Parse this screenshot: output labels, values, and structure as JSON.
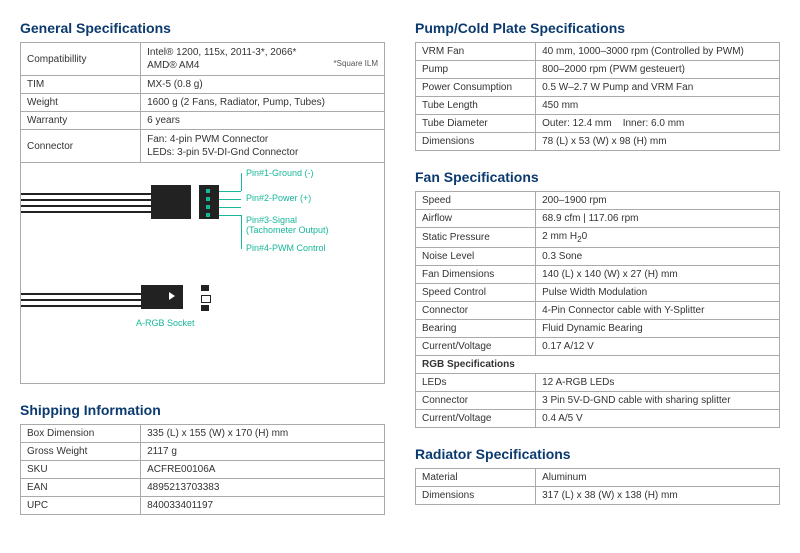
{
  "general": {
    "title": "General Specifications",
    "rows": [
      {
        "k": "Compatibillity",
        "v": "Intel® 1200, 115x, 2011-3*, 2066*<br>AMD® AM4",
        "note": "*Square ILM"
      },
      {
        "k": "TIM",
        "v": "MX-5 (0.8 g)"
      },
      {
        "k": "Weight",
        "v": "1600 g (2 Fans, Radiator, Pump, Tubes)"
      },
      {
        "k": "Warranty",
        "v": "6 years"
      },
      {
        "k": "Connector",
        "v": "Fan: 4-pin PWM Connector<br>LEDs: 3-pin 5V-DI-Gnd Connector"
      }
    ]
  },
  "diagram": {
    "pins": [
      {
        "label": "Pin#1-Ground (-)"
      },
      {
        "label": "Pin#2-Power (+)"
      },
      {
        "label": "Pin#3-Signal",
        "sub": "(Tachometer Output)"
      },
      {
        "label": "Pin#4-PWM Control"
      }
    ],
    "argb": "A-RGB Socket"
  },
  "shipping": {
    "title": "Shipping Information",
    "rows": [
      {
        "k": "Box Dimension",
        "v": "335 (L) x 155 (W) x 170 (H) mm"
      },
      {
        "k": "Gross Weight",
        "v": "2117 g"
      },
      {
        "k": "SKU",
        "v": "ACFRE00106A"
      },
      {
        "k": "EAN",
        "v": "4895213703383"
      },
      {
        "k": "UPC",
        "v": "840033401197"
      }
    ]
  },
  "pump": {
    "title": "Pump/Cold Plate Specifications",
    "rows": [
      {
        "k": "VRM Fan",
        "v": "40 mm, 1000–3000 rpm (Controlled by PWM)"
      },
      {
        "k": "Pump",
        "v": "800–2000 rpm (PWM gesteuert)"
      },
      {
        "k": "Power Consumption",
        "v": "0.5 W–2.7 W Pump and VRM Fan"
      },
      {
        "k": "Tube Length",
        "v": "450 mm"
      },
      {
        "k": "Tube Diameter",
        "v": "Outer: 12.4 mm    Inner: 6.0 mm"
      },
      {
        "k": "Dimensions",
        "v": "78 (L) x 53 (W) x 98 (H) mm"
      }
    ]
  },
  "fan": {
    "title": "Fan Specifications",
    "rows": [
      {
        "k": "Speed",
        "v": "200–1900 rpm"
      },
      {
        "k": "Airflow",
        "v": "68.9 cfm | 117.06 rpm"
      },
      {
        "k": "Static Pressure",
        "v": "2 mm H<sub>2</sub>0"
      },
      {
        "k": "Noise Level",
        "v": "0.3 Sone"
      },
      {
        "k": "Fan Dimensions",
        "v": "140 (L) x 140 (W) x 27 (H) mm"
      },
      {
        "k": "Speed Control",
        "v": "Pulse Width Modulation"
      },
      {
        "k": "Connector",
        "v": "4-Pin Connector cable with Y-Splitter"
      },
      {
        "k": "Bearing",
        "v": "Fluid Dynamic Bearing"
      },
      {
        "k": "Current/Voltage",
        "v": "0.17 A/12 V"
      },
      {
        "k": "RGB Specifications",
        "v": "",
        "bold": true,
        "span": true
      },
      {
        "k": "LEDs",
        "v": "12 A-RGB LEDs"
      },
      {
        "k": "Connector",
        "v": "3 Pin 5V-D-GND cable with sharing splitter"
      },
      {
        "k": "Current/Voltage",
        "v": "0.4 A/5 V"
      }
    ]
  },
  "radiator": {
    "title": "Radiator Specifications",
    "rows": [
      {
        "k": "Material",
        "v": "Aluminum"
      },
      {
        "k": "Dimensions",
        "v": "317 (L) x 38 (W) x 138 (H) mm"
      }
    ]
  }
}
